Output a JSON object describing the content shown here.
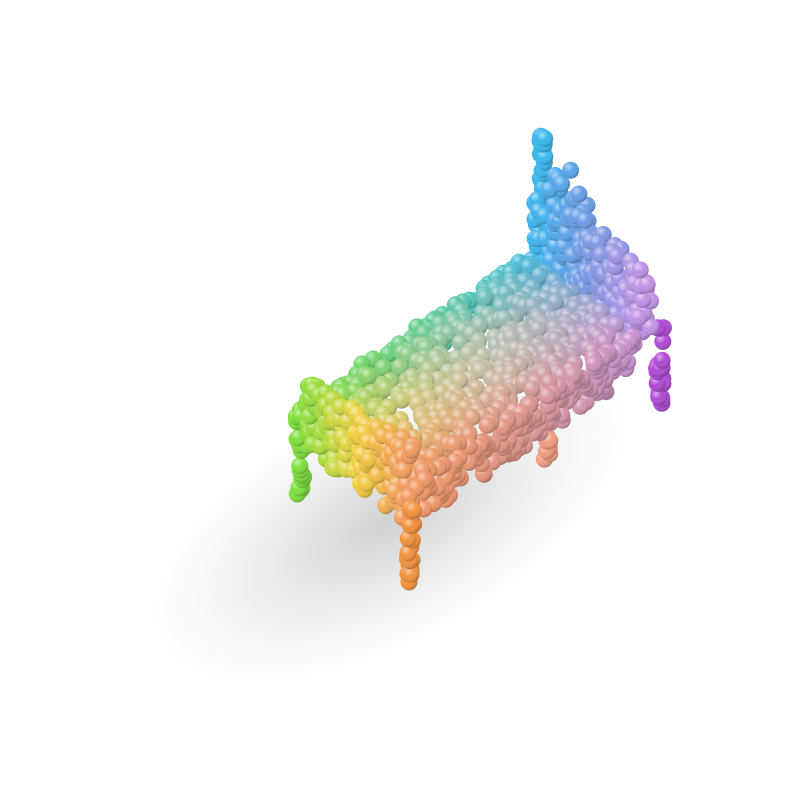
{
  "scene": {
    "subject": "bed",
    "style": "point-cloud-spheres",
    "background": "#ffffff",
    "palette": {
      "headboard_left": "#37b8ee",
      "headboard_mid": "#6f95e6",
      "headboard_right": "#c392e6",
      "footboard_left": "#7ee03c",
      "footboard_mid": "#f2d23a",
      "footboard_right": "#f2913a",
      "mattress_center": "#d8d0c2",
      "mattress_pink": "#f2a6c6",
      "right_legs": "#b148d6"
    }
  }
}
